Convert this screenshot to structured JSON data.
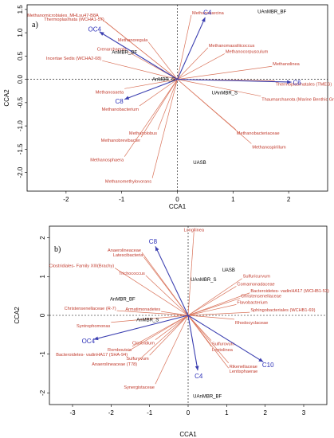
{
  "colors": {
    "taxa": "#c0392b",
    "env": "#2b2fb8",
    "site": "#000000"
  },
  "chart_data": [
    {
      "type": "scatter",
      "panel_label": "a)",
      "xlabel": "CCA1",
      "ylabel": "CCA2",
      "xlim": [
        -2.7,
        2.7
      ],
      "ylim": [
        -2.4,
        1.6
      ],
      "xticks": [
        -2,
        -1,
        0,
        1,
        2
      ],
      "yticks": [
        1.5,
        1.0,
        0.5,
        0.0,
        -0.5,
        -1.0,
        -1.5,
        -2.0
      ],
      "ytick_labels": [
        "1.5",
        "1.0",
        "0.5",
        "0.0",
        "-0.5",
        "-1.0",
        "-1.5",
        "-2.0"
      ],
      "taxa": [
        {
          "label": "Methanomicrobiales_MHLsu47-B8A",
          "x": -1.4,
          "y": 1.33
        },
        {
          "label": "Thermoplasmata (WCHA1-57)",
          "x": -1.3,
          "y": 1.24
        },
        {
          "label": "Methanosarcina",
          "x": 0.25,
          "y": 1.38
        },
        {
          "label": "Methanoregula",
          "x": -0.52,
          "y": 0.8
        },
        {
          "label": "Crenarchaeota",
          "x": -0.9,
          "y": 0.6
        },
        {
          "label": "Methanomassiliicoccus",
          "x": 0.55,
          "y": 0.68
        },
        {
          "label": "Methanocorpusculum",
          "x": 0.85,
          "y": 0.55
        },
        {
          "label": "Incertae Sedis (WCHA2-08)",
          "x": -1.35,
          "y": 0.4
        },
        {
          "label": "Methanolinea",
          "x": 1.7,
          "y": 0.28
        },
        {
          "label": "Thermoplasmatales (TMEG)",
          "x": 1.75,
          "y": -0.03
        },
        {
          "label": "Thaumarchaeota (Marine Benthic Group B)",
          "x": 1.5,
          "y": -0.36
        },
        {
          "label": "Methanosaeta",
          "x": -0.95,
          "y": -0.2
        },
        {
          "label": "Methanobacterium",
          "x": -0.68,
          "y": -0.57
        },
        {
          "label": "Methanolobus",
          "x": -0.35,
          "y": -1.08
        },
        {
          "label": "Methanobrevibacter",
          "x": -0.65,
          "y": -1.24
        },
        {
          "label": "Methanobacteriaceae",
          "x": 1.05,
          "y": -1.08
        },
        {
          "label": "Methanospirillum",
          "x": 1.33,
          "y": -1.38
        },
        {
          "label": "Methanosphaera",
          "x": -0.95,
          "y": -1.66
        },
        {
          "label": "Methanomethylovorans",
          "x": -0.45,
          "y": -2.12
        }
      ],
      "env": [
        {
          "label": "C4",
          "x": 0.5,
          "y": 1.33
        },
        {
          "label": "OC4",
          "x": -1.4,
          "y": 1.02
        },
        {
          "label": "C8",
          "x": -0.95,
          "y": -0.43
        },
        {
          "label": "C6",
          "x": 2.05,
          "y": -0.06
        }
      ],
      "sites": [
        {
          "label": "UAnMBR_BF",
          "x": 1.7,
          "y": 1.42
        },
        {
          "label": "AnMBR_BF",
          "x": -0.95,
          "y": 0.55
        },
        {
          "label": "AnMBR_S",
          "x": -0.25,
          "y": -0.03
        },
        {
          "label": "UAnMBR_S",
          "x": 0.85,
          "y": -0.32
        },
        {
          "label": "UASB",
          "x": 0.4,
          "y": -1.82
        }
      ]
    },
    {
      "type": "scatter",
      "panel_label": "b)",
      "xlabel": "CCA1",
      "ylabel": "CCA2",
      "xlim": [
        -3.6,
        3.6
      ],
      "ylim": [
        -2.3,
        2.3
      ],
      "xticks": [
        -3,
        -2,
        -1,
        0,
        1,
        2,
        3
      ],
      "yticks": [
        2,
        1,
        0,
        -1,
        -2
      ],
      "ytick_labels": [
        "2",
        "1",
        "0",
        "-1",
        "-2"
      ],
      "taxa": [
        {
          "label": "Longilinea",
          "x": 0.15,
          "y": 2.15
        },
        {
          "label": "Anaerolineaceae",
          "x": -1.2,
          "y": 1.62
        },
        {
          "label": "Latescibacteria",
          "x": -1.15,
          "y": 1.5
        },
        {
          "label": "Clostridiales- Family XIII(Brachy)",
          "x": -1.9,
          "y": 1.22
        },
        {
          "label": "Trichococcus",
          "x": -1.1,
          "y": 1.03
        },
        {
          "label": "Sulfuricurvum",
          "x": 1.4,
          "y": 0.95
        },
        {
          "label": "Comamonadaceae",
          "x": 1.25,
          "y": 0.75
        },
        {
          "label": "Bacteroidetes- vadinHA17 (WCHB1-53)",
          "x": 1.6,
          "y": 0.58
        },
        {
          "label": "Christensenellaceae",
          "x": 1.35,
          "y": 0.44
        },
        {
          "label": "Flavobacterium",
          "x": 1.25,
          "y": 0.28
        },
        {
          "label": "Sphingobacteriales (WCHB1-69)",
          "x": 1.6,
          "y": 0.08
        },
        {
          "label": "Rhodocyclaceae",
          "x": 1.2,
          "y": -0.1
        },
        {
          "label": "Christensenellaceae (R-7)",
          "x": -1.85,
          "y": 0.12
        },
        {
          "label": "Armatimonadetes",
          "x": -0.7,
          "y": 0.1
        },
        {
          "label": "Syntrophomonas",
          "x": -2.0,
          "y": -0.18
        },
        {
          "label": "Clostridium",
          "x": -0.85,
          "y": -0.63
        },
        {
          "label": "Romboutsia",
          "x": -1.45,
          "y": -0.8
        },
        {
          "label": "Bacteroidetes- vadinHA17 (SHA-94)",
          "x": -1.55,
          "y": -0.92
        },
        {
          "label": "Sulfurovum",
          "x": -1.0,
          "y": -1.03
        },
        {
          "label": "Anaerolineaceae (T78)",
          "x": -1.3,
          "y": -1.17
        },
        {
          "label": "Sulfurovum",
          "x": 0.6,
          "y": -0.65
        },
        {
          "label": "Leptolinea",
          "x": 0.6,
          "y": -0.8
        },
        {
          "label": "Rikenellaceae",
          "x": 1.05,
          "y": -1.23
        },
        {
          "label": "Lentisphaerae",
          "x": 1.05,
          "y": -1.36
        },
        {
          "label": "Synergistaceae",
          "x": -0.85,
          "y": -1.77
        }
      ],
      "env": [
        {
          "label": "C8",
          "x": -0.85,
          "y": 1.78
        },
        {
          "label": "OC4",
          "x": -2.45,
          "y": -0.62
        },
        {
          "label": "C4",
          "x": 0.25,
          "y": -1.42
        },
        {
          "label": "C10",
          "x": 1.95,
          "y": -1.2
        }
      ],
      "sites": [
        {
          "label": "UASB",
          "x": 1.05,
          "y": 1.13
        },
        {
          "label": "UAnMBR_S",
          "x": 0.4,
          "y": 0.88
        },
        {
          "label": "AnMBR_BF",
          "x": -1.7,
          "y": 0.38
        },
        {
          "label": "AnMBR_S",
          "x": -1.05,
          "y": -0.15
        },
        {
          "label": "UAnMBR_BF",
          "x": 0.5,
          "y": -2.13
        }
      ]
    }
  ]
}
